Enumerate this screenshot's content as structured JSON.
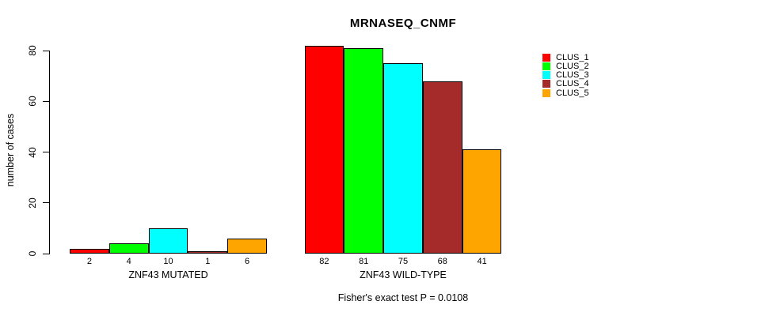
{
  "chart_data": {
    "type": "bar",
    "title": "MRNASEQ_CNMF",
    "ylabel": "number of cases",
    "xlabel": "",
    "footer": "Fisher's exact test P = 0.0108",
    "yticks": [
      0,
      20,
      40,
      60,
      80
    ],
    "ylim": [
      0,
      82
    ],
    "grid": false,
    "legend_position": "right",
    "bar_value_labels_shown": true,
    "series": [
      {
        "name": "CLUS_1",
        "color": "#FF0000"
      },
      {
        "name": "CLUS_2",
        "color": "#00FF00"
      },
      {
        "name": "CLUS_3",
        "color": "#00FFFF"
      },
      {
        "name": "CLUS_4",
        "color": "#A52A2A"
      },
      {
        "name": "CLUS_5",
        "color": "#FFA500"
      }
    ],
    "groups": [
      {
        "label": "ZNF43 MUTATED",
        "values": [
          2,
          4,
          10,
          1,
          6
        ]
      },
      {
        "label": "ZNF43 WILD-TYPE",
        "values": [
          82,
          81,
          75,
          68,
          41
        ]
      }
    ]
  }
}
